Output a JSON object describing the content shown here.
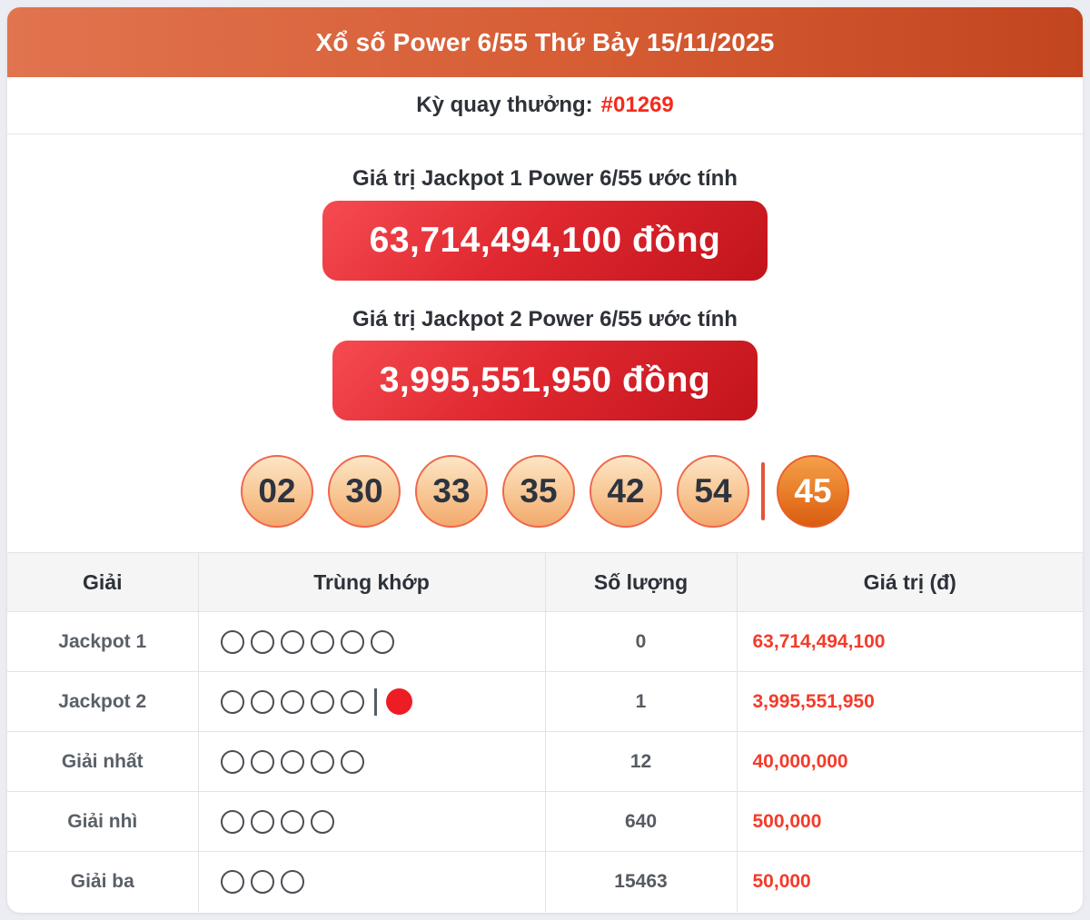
{
  "header": {
    "title": "Xổ số Power 6/55 Thứ Bảy 15/11/2025"
  },
  "draw": {
    "label": "Kỳ quay thưởng:",
    "number": "#01269"
  },
  "jackpots": [
    {
      "label": "Giá trị Jackpot 1 Power 6/55 ước tính",
      "amount": "63,714,494,100 đồng"
    },
    {
      "label": "Giá trị Jackpot 2 Power 6/55 ước tính",
      "amount": "3,995,551,950 đồng"
    }
  ],
  "balls": {
    "main": [
      "02",
      "30",
      "33",
      "35",
      "42",
      "54"
    ],
    "special": "45"
  },
  "table": {
    "headers": [
      "Giải",
      "Trùng khớp",
      "Số lượng",
      "Giá trị (đ)"
    ],
    "rows": [
      {
        "prize": "Jackpot 1",
        "match_open": 6,
        "match_special": false,
        "count": "0",
        "value": "63,714,494,100"
      },
      {
        "prize": "Jackpot 2",
        "match_open": 5,
        "match_special": true,
        "count": "1",
        "value": "3,995,551,950"
      },
      {
        "prize": "Giải nhất",
        "match_open": 5,
        "match_special": false,
        "count": "12",
        "value": "40,000,000"
      },
      {
        "prize": "Giải nhì",
        "match_open": 4,
        "match_special": false,
        "count": "640",
        "value": "500,000"
      },
      {
        "prize": "Giải ba",
        "match_open": 3,
        "match_special": false,
        "count": "15463",
        "value": "50,000"
      }
    ]
  },
  "colors": {
    "header_gradient_left": "#e0744f",
    "header_gradient_right": "#c2451f",
    "jackpot_button_red_light": "#f54b51",
    "jackpot_button_red_dark": "#c2141c",
    "accent_red_text": "#f6291c",
    "table_value_red": "#f43b2a",
    "ball_fill_top": "#fde6c6",
    "ball_fill_bottom": "#f2a96d",
    "ball_border": "#f0664b",
    "special_ball_top": "#f4a04a",
    "special_ball_bottom": "#d95d12",
    "page_background": "#ecedf2"
  }
}
